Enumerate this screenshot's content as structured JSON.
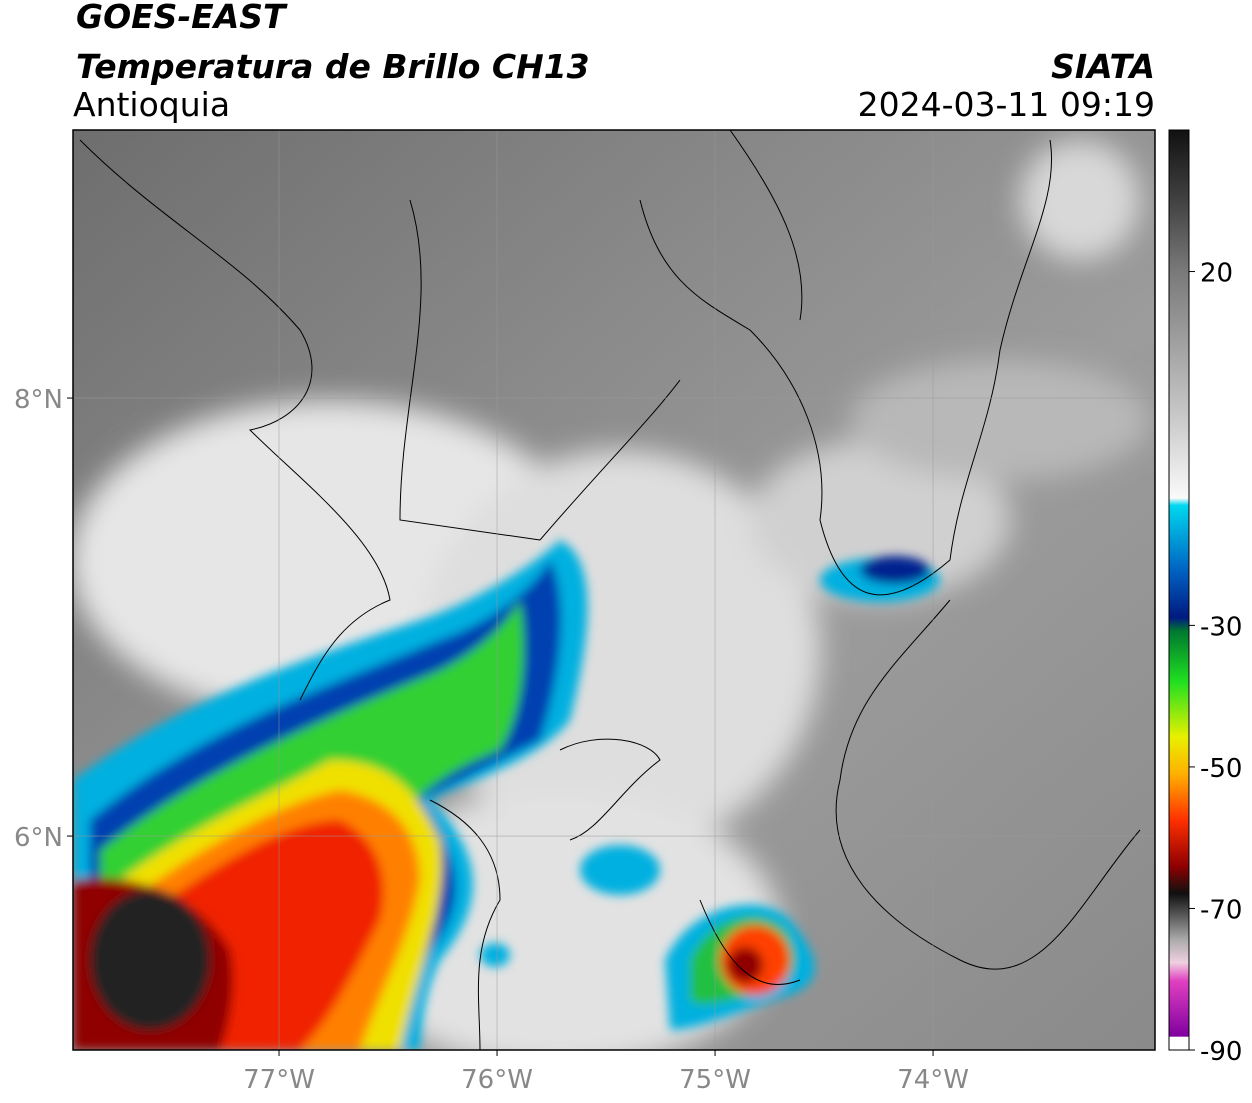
{
  "header": {
    "title": "GOES-EAST",
    "subtitle": "Temperatura de Brillo CH13",
    "region": "Antioquia",
    "source": "SIATA",
    "datetime": "2024-03-11 09:19"
  },
  "map": {
    "lonlim": [
      -77.945,
      -72.982
    ],
    "latlim": [
      5.023,
      9.224
    ],
    "xticks": [
      {
        "value": -77,
        "label": "77°W"
      },
      {
        "value": -76,
        "label": "76°W"
      },
      {
        "value": -75,
        "label": "75°W"
      },
      {
        "value": -74,
        "label": "74°W"
      }
    ],
    "yticks": [
      {
        "value": 8,
        "label": "8°N"
      },
      {
        "value": 6,
        "label": "6°N"
      }
    ]
  },
  "colorbar": {
    "lim": [
      -90,
      40
    ],
    "ticks": [
      20,
      -30,
      -50,
      -70,
      -90
    ]
  }
}
